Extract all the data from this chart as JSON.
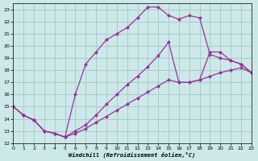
{
  "xlabel": "Windchill (Refroidissement éolien,°C)",
  "background_color": "#cce8e8",
  "grid_color": "#aacccc",
  "line_color": "#993399",
  "xlim": [
    0,
    23
  ],
  "ylim": [
    12,
    23.5
  ],
  "xticks": [
    0,
    1,
    2,
    3,
    4,
    5,
    6,
    7,
    8,
    9,
    10,
    11,
    12,
    13,
    14,
    15,
    16,
    17,
    18,
    19,
    20,
    21,
    22,
    23
  ],
  "yticks": [
    12,
    13,
    14,
    15,
    16,
    17,
    18,
    19,
    20,
    21,
    22,
    23
  ],
  "c1x": [
    0,
    1,
    2,
    3,
    4,
    5,
    6,
    7,
    8,
    9,
    10,
    11,
    12,
    13,
    14,
    15,
    16,
    17,
    18,
    19,
    20,
    21,
    22,
    23
  ],
  "c1y": [
    15.0,
    14.3,
    13.9,
    13.0,
    12.8,
    12.5,
    16.0,
    18.5,
    19.5,
    20.5,
    21.0,
    21.5,
    22.3,
    23.2,
    23.2,
    22.5,
    22.2,
    22.5,
    22.3,
    19.3,
    19.0,
    18.8,
    18.5,
    17.8
  ],
  "c2x": [
    0,
    1,
    2,
    3,
    4,
    5,
    6,
    7,
    8,
    9,
    10,
    11,
    12,
    13,
    14,
    15,
    16,
    17,
    18,
    19,
    20,
    21,
    22,
    23
  ],
  "c2y": [
    15.0,
    14.3,
    13.9,
    13.0,
    12.8,
    12.5,
    13.0,
    13.5,
    14.3,
    15.2,
    16.0,
    16.8,
    17.5,
    18.3,
    19.2,
    20.3,
    17.0,
    17.0,
    17.2,
    19.5,
    19.5,
    18.8,
    18.5,
    17.8
  ],
  "c3x": [
    0,
    1,
    2,
    3,
    4,
    5,
    6,
    7,
    8,
    9,
    10,
    11,
    12,
    13,
    14,
    15,
    16,
    17,
    18,
    19,
    20,
    21,
    22,
    23
  ],
  "c3y": [
    15.0,
    14.3,
    13.9,
    13.0,
    12.8,
    12.5,
    12.8,
    13.2,
    13.7,
    14.2,
    14.7,
    15.2,
    15.7,
    16.2,
    16.7,
    17.2,
    17.0,
    17.0,
    17.2,
    17.5,
    17.8,
    18.0,
    18.2,
    17.8
  ]
}
